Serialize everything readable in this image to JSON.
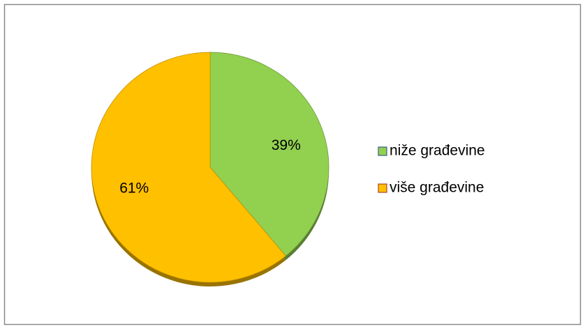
{
  "chart_data": {
    "type": "pie",
    "categories": [
      "niže građevine",
      "više građevine"
    ],
    "values": [
      39,
      61
    ],
    "value_labels": [
      "39%",
      "61%"
    ],
    "colors": [
      "#92d050",
      "#ffc000"
    ]
  }
}
